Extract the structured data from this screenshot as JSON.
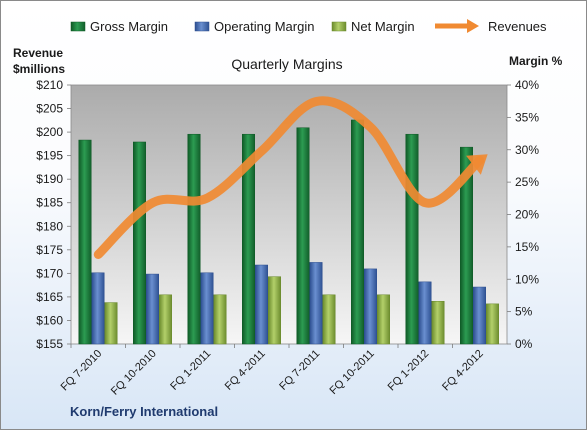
{
  "chart_data": {
    "type": "bar",
    "title": "Quarterly Margins",
    "company": "Korn/Ferry International",
    "categories": [
      "FQ 7-2010",
      "FQ 10-2010",
      "FQ 1-2011",
      "FQ 4-2011",
      "FQ 7-2011",
      "FQ 10-2011",
      "FQ 1-2012",
      "FQ 4-2012"
    ],
    "series": [
      {
        "name": "Gross Margin",
        "axis": "right",
        "kind": "bar",
        "color": "#1e7a3c",
        "values": [
          31.5,
          31.2,
          32.4,
          32.4,
          33.4,
          34.6,
          32.4,
          30.4
        ]
      },
      {
        "name": "Operating Margin",
        "axis": "right",
        "kind": "bar",
        "color": "#4a6fb5",
        "values": [
          11.0,
          10.8,
          11.0,
          12.2,
          12.6,
          11.6,
          9.6,
          8.8
        ]
      },
      {
        "name": "Net Margin",
        "axis": "right",
        "kind": "bar",
        "color": "#8fb04a",
        "values": [
          6.4,
          7.6,
          7.6,
          10.4,
          7.6,
          7.6,
          6.6,
          6.2
        ]
      },
      {
        "name": "Revenues",
        "axis": "left",
        "kind": "line",
        "color": "#f08a32",
        "values": [
          174,
          185,
          186,
          196,
          206.5,
          201,
          185,
          194
        ]
      }
    ],
    "y_left": {
      "label_line1": "Revenue",
      "label_line2": "$millions",
      "min": 155,
      "max": 210,
      "step": 5,
      "prefix": "$"
    },
    "y_right": {
      "label": "Margin %",
      "min": 0,
      "max": 40,
      "step": 5,
      "suffix": "%"
    },
    "legend_position": "top",
    "grid": false
  }
}
